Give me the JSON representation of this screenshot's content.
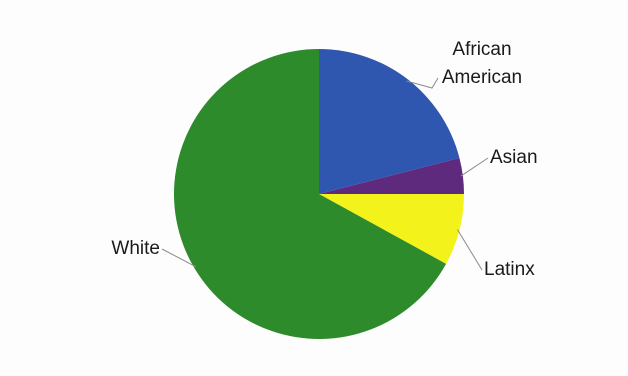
{
  "chart_data": {
    "type": "pie",
    "title": "",
    "slices": [
      {
        "label": "African American",
        "label_lines": [
          "African",
          "American"
        ],
        "value": 21,
        "color": "#2f57b0"
      },
      {
        "label": "Asian",
        "label_lines": [
          "Asian"
        ],
        "value": 4,
        "color": "#5e2a7e"
      },
      {
        "label": "Latinx",
        "label_lines": [
          "Latinx"
        ],
        "value": 8,
        "color": "#f3f21a"
      },
      {
        "label": "White",
        "label_lines": [
          "White"
        ],
        "value": 67,
        "color": "#2d8b2b"
      }
    ],
    "start_angle": "12 o'clock",
    "direction": "clockwise",
    "legend": "none (leader-line labels)"
  }
}
